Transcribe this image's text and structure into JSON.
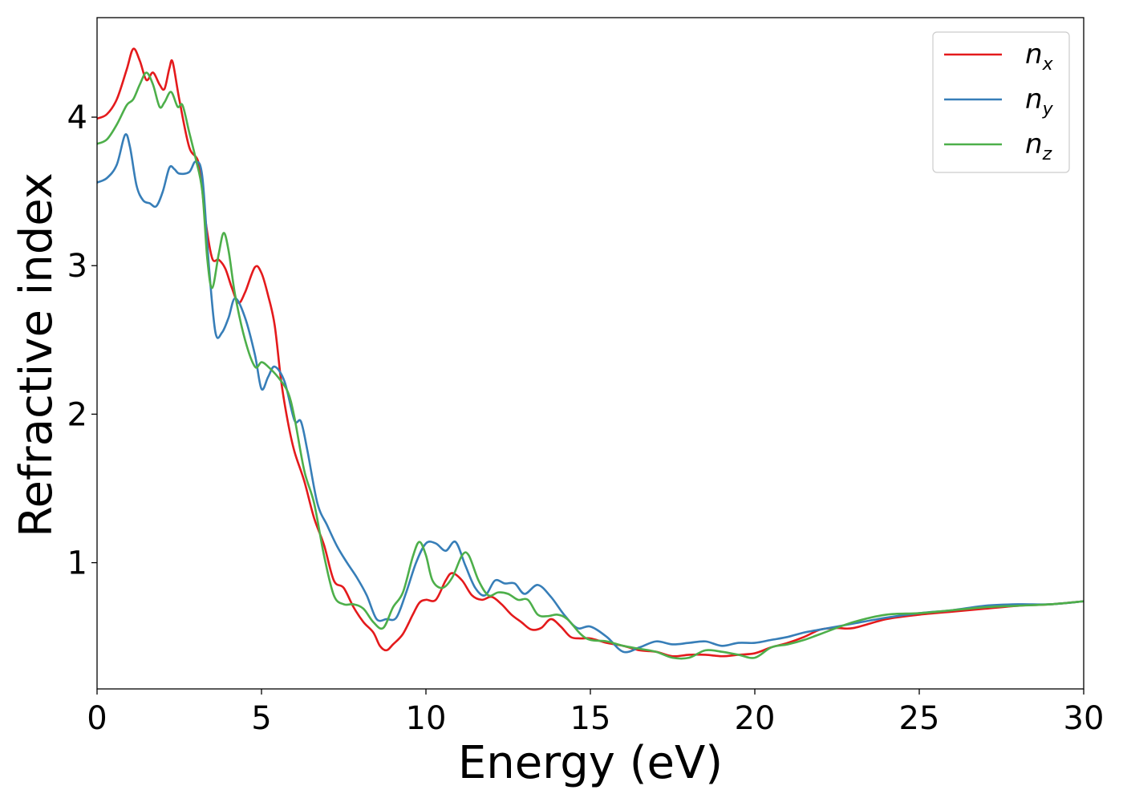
{
  "chart_data": {
    "type": "line",
    "title": "",
    "xlabel": "Energy (eV)",
    "ylabel": "Refractive index",
    "xlim": [
      0,
      30
    ],
    "ylim": [
      0.15,
      4.67
    ],
    "xticks": [
      0,
      5,
      10,
      15,
      20,
      25,
      30
    ],
    "yticks": [
      1,
      2,
      3,
      4
    ],
    "xtick_labels": [
      "0",
      "5",
      "10",
      "15",
      "20",
      "25",
      "30"
    ],
    "ytick_labels": [
      "1",
      "2",
      "3",
      "4"
    ],
    "grid": false,
    "legend_position": "top-right",
    "series": [
      {
        "name": "n",
        "subscript": "x",
        "color": "#e41a1c",
        "x": [
          0,
          0.3,
          0.6,
          0.9,
          1.1,
          1.3,
          1.5,
          1.7,
          1.9,
          2.05,
          2.2,
          2.3,
          2.5,
          2.8,
          3.1,
          3.3,
          3.5,
          3.7,
          3.9,
          4.1,
          4.3,
          4.5,
          4.8,
          5.0,
          5.2,
          5.4,
          5.6,
          5.8,
          6.0,
          6.3,
          6.6,
          6.9,
          7.2,
          7.5,
          7.8,
          8.1,
          8.4,
          8.6,
          8.8,
          9.0,
          9.3,
          9.6,
          9.8,
          10.0,
          10.3,
          10.6,
          10.8,
          11.1,
          11.4,
          11.7,
          12.0,
          12.3,
          12.6,
          12.9,
          13.2,
          13.5,
          13.8,
          14.1,
          14.4,
          14.7,
          15.0,
          15.5,
          16.0,
          16.5,
          17.0,
          17.5,
          18.0,
          18.5,
          19.0,
          19.5,
          20.0,
          20.5,
          21.0,
          21.5,
          22.0,
          22.5,
          23.0,
          24.0,
          25.0,
          26.0,
          27.0,
          28.0,
          29.0,
          30.0
        ],
        "values": [
          3.99,
          4.02,
          4.12,
          4.32,
          4.46,
          4.38,
          4.25,
          4.3,
          4.22,
          4.19,
          4.33,
          4.37,
          4.12,
          3.8,
          3.68,
          3.3,
          3.05,
          3.04,
          2.98,
          2.85,
          2.75,
          2.82,
          2.99,
          2.95,
          2.8,
          2.6,
          2.22,
          1.95,
          1.75,
          1.55,
          1.3,
          1.12,
          0.88,
          0.83,
          0.7,
          0.6,
          0.53,
          0.44,
          0.41,
          0.45,
          0.52,
          0.65,
          0.73,
          0.75,
          0.75,
          0.88,
          0.93,
          0.88,
          0.78,
          0.75,
          0.77,
          0.72,
          0.65,
          0.6,
          0.55,
          0.56,
          0.62,
          0.57,
          0.5,
          0.49,
          0.49,
          0.46,
          0.44,
          0.41,
          0.4,
          0.37,
          0.38,
          0.38,
          0.37,
          0.38,
          0.39,
          0.43,
          0.46,
          0.5,
          0.55,
          0.56,
          0.56,
          0.62,
          0.65,
          0.67,
          0.69,
          0.71,
          0.72,
          0.74
        ]
      },
      {
        "name": "n",
        "subscript": "y",
        "color": "#377eb8",
        "x": [
          0,
          0.3,
          0.6,
          0.85,
          1.0,
          1.2,
          1.4,
          1.6,
          1.8,
          2.0,
          2.2,
          2.35,
          2.5,
          2.8,
          3.0,
          3.2,
          3.4,
          3.6,
          3.8,
          4.0,
          4.2,
          4.5,
          4.8,
          5.0,
          5.2,
          5.4,
          5.7,
          6.0,
          6.2,
          6.4,
          6.7,
          7.0,
          7.3,
          7.6,
          7.9,
          8.2,
          8.5,
          8.8,
          9.1,
          9.4,
          9.7,
          10.0,
          10.3,
          10.6,
          10.9,
          11.2,
          11.5,
          11.8,
          12.1,
          12.4,
          12.7,
          13.0,
          13.4,
          13.8,
          14.2,
          14.6,
          15.0,
          15.5,
          16.0,
          16.5,
          17.0,
          17.5,
          18.0,
          18.5,
          19.0,
          19.5,
          20.0,
          20.5,
          21.0,
          21.5,
          22.0,
          23.0,
          24.0,
          25.0,
          26.0,
          27.0,
          28.0,
          29.0,
          30.0
        ],
        "values": [
          3.56,
          3.59,
          3.68,
          3.88,
          3.8,
          3.54,
          3.44,
          3.42,
          3.4,
          3.5,
          3.66,
          3.65,
          3.62,
          3.63,
          3.7,
          3.6,
          3.0,
          2.55,
          2.55,
          2.65,
          2.78,
          2.65,
          2.4,
          2.17,
          2.25,
          2.32,
          2.22,
          1.96,
          1.95,
          1.75,
          1.4,
          1.25,
          1.11,
          1.0,
          0.9,
          0.78,
          0.62,
          0.62,
          0.63,
          0.8,
          1.0,
          1.13,
          1.13,
          1.08,
          1.14,
          0.98,
          0.83,
          0.78,
          0.88,
          0.86,
          0.86,
          0.79,
          0.85,
          0.77,
          0.65,
          0.56,
          0.57,
          0.5,
          0.4,
          0.43,
          0.47,
          0.45,
          0.46,
          0.47,
          0.44,
          0.46,
          0.46,
          0.48,
          0.5,
          0.53,
          0.55,
          0.59,
          0.63,
          0.66,
          0.68,
          0.71,
          0.72,
          0.72,
          0.74
        ]
      },
      {
        "name": "n",
        "subscript": "z",
        "color": "#4daf4a",
        "x": [
          0,
          0.3,
          0.6,
          0.9,
          1.1,
          1.3,
          1.5,
          1.7,
          1.9,
          2.05,
          2.25,
          2.45,
          2.6,
          2.8,
          3.0,
          3.2,
          3.35,
          3.5,
          3.7,
          3.85,
          4.0,
          4.2,
          4.5,
          4.8,
          5.0,
          5.2,
          5.5,
          5.8,
          6.0,
          6.3,
          6.6,
          6.9,
          7.2,
          7.5,
          7.8,
          8.1,
          8.4,
          8.7,
          9.0,
          9.3,
          9.6,
          9.8,
          10.0,
          10.2,
          10.5,
          10.8,
          11.1,
          11.3,
          11.6,
          11.9,
          12.2,
          12.5,
          12.8,
          13.1,
          13.4,
          13.7,
          14.0,
          14.3,
          14.7,
          15.0,
          15.5,
          16.0,
          16.5,
          17.0,
          17.5,
          18.0,
          18.5,
          19.0,
          19.5,
          20.0,
          20.5,
          21.0,
          21.5,
          22.0,
          23.0,
          24.0,
          25.0,
          26.0,
          27.0,
          28.0,
          29.0,
          30.0
        ],
        "values": [
          3.82,
          3.85,
          3.95,
          4.08,
          4.12,
          4.22,
          4.3,
          4.22,
          4.07,
          4.1,
          4.17,
          4.07,
          4.08,
          3.9,
          3.72,
          3.5,
          3.05,
          2.85,
          3.08,
          3.22,
          3.1,
          2.8,
          2.5,
          2.32,
          2.35,
          2.32,
          2.25,
          2.15,
          1.98,
          1.62,
          1.4,
          1.05,
          0.78,
          0.72,
          0.72,
          0.69,
          0.6,
          0.56,
          0.7,
          0.8,
          1.04,
          1.14,
          1.05,
          0.88,
          0.83,
          0.9,
          1.05,
          1.05,
          0.88,
          0.78,
          0.8,
          0.79,
          0.75,
          0.75,
          0.65,
          0.64,
          0.65,
          0.62,
          0.52,
          0.48,
          0.47,
          0.44,
          0.42,
          0.4,
          0.36,
          0.36,
          0.41,
          0.4,
          0.38,
          0.36,
          0.43,
          0.45,
          0.48,
          0.52,
          0.6,
          0.65,
          0.66,
          0.68,
          0.7,
          0.71,
          0.72,
          0.74
        ]
      }
    ]
  }
}
